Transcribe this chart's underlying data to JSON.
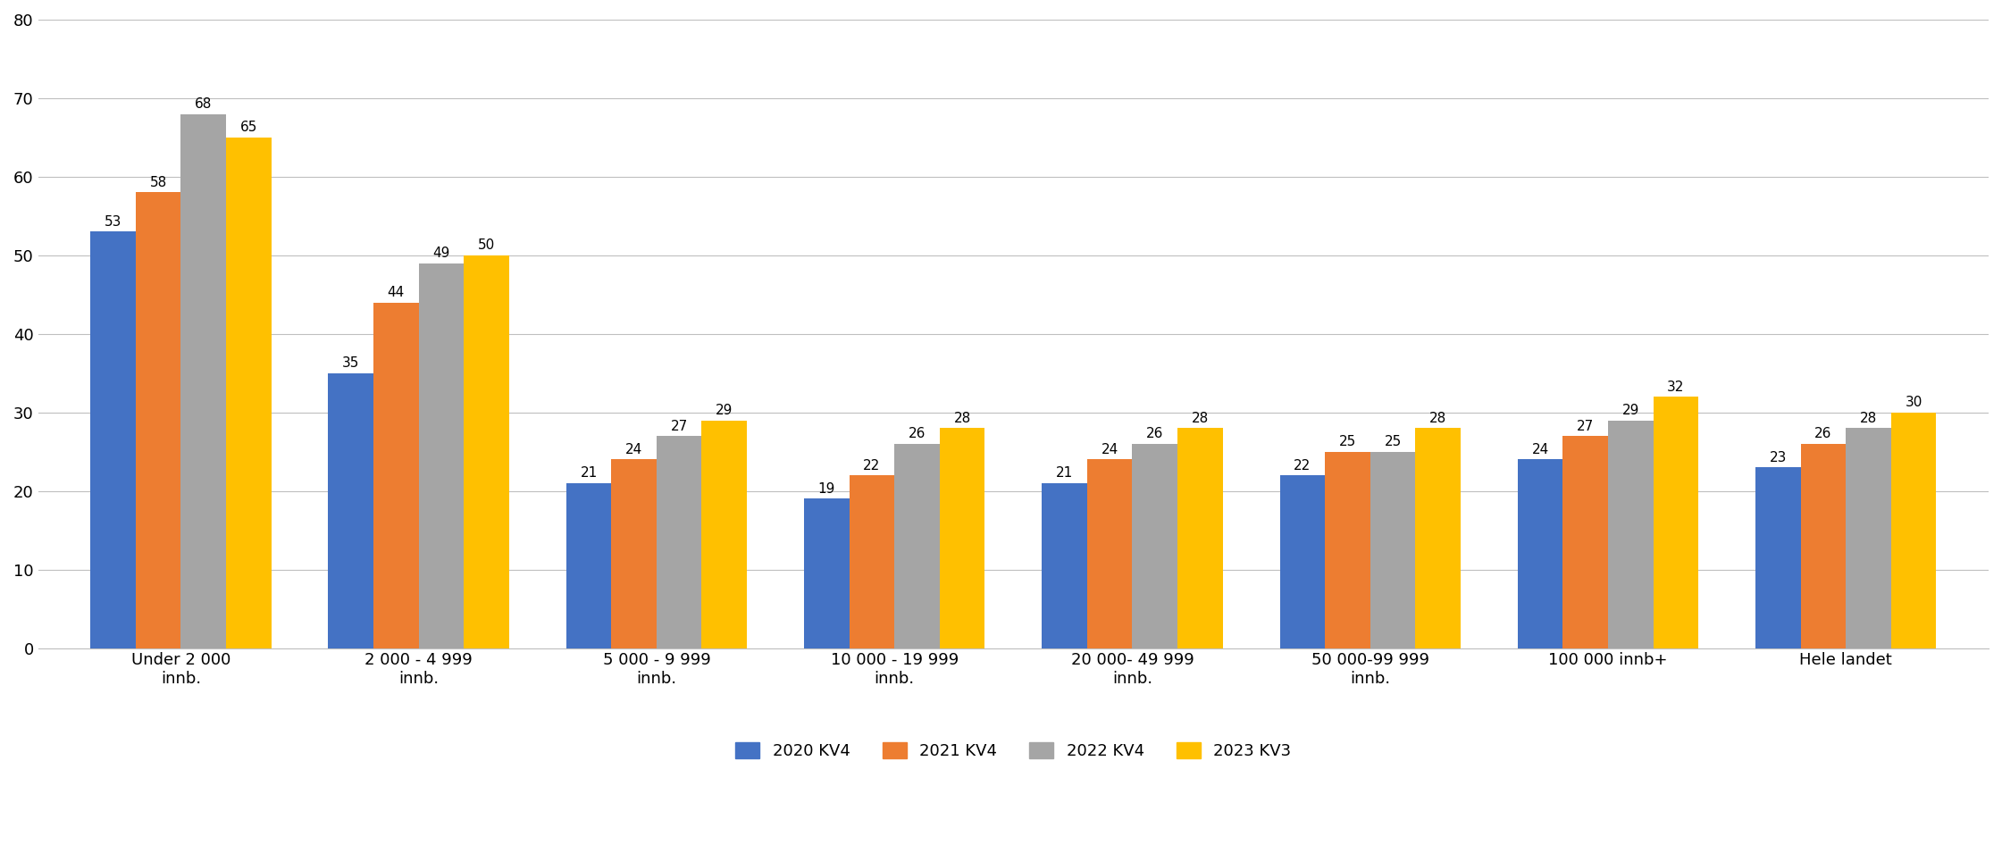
{
  "categories": [
    "Under 2 000\ninnb.",
    "2 000 - 4 999\ninnb.",
    "5 000 - 9 999\ninnb.",
    "10 000 - 19 999\ninnb.",
    "20 000- 49 999\ninnb.",
    "50 000-99 999\ninnb.",
    "100 000 innb+",
    "Hele landet"
  ],
  "series": {
    "2020 KV4": [
      53,
      35,
      21,
      19,
      21,
      22,
      24,
      23
    ],
    "2021 KV4": [
      58,
      44,
      24,
      22,
      24,
      25,
      27,
      26
    ],
    "2022 KV4": [
      68,
      49,
      27,
      26,
      26,
      25,
      29,
      28
    ],
    "2023 KV3": [
      65,
      50,
      29,
      28,
      28,
      28,
      32,
      30
    ]
  },
  "series_order": [
    "2020 KV4",
    "2021 KV4",
    "2022 KV4",
    "2023 KV3"
  ],
  "colors": {
    "2020 KV4": "#4472C4",
    "2021 KV4": "#ED7D31",
    "2022 KV4": "#A5A5A5",
    "2023 KV3": "#FFC000"
  },
  "ylim": [
    0,
    80
  ],
  "yticks": [
    0,
    10,
    20,
    30,
    40,
    50,
    60,
    70,
    80
  ],
  "bar_width": 0.19,
  "label_fontsize": 11,
  "tick_fontsize": 13,
  "legend_fontsize": 13,
  "background_color": "#FFFFFF",
  "grid_color": "#BFBFBF"
}
